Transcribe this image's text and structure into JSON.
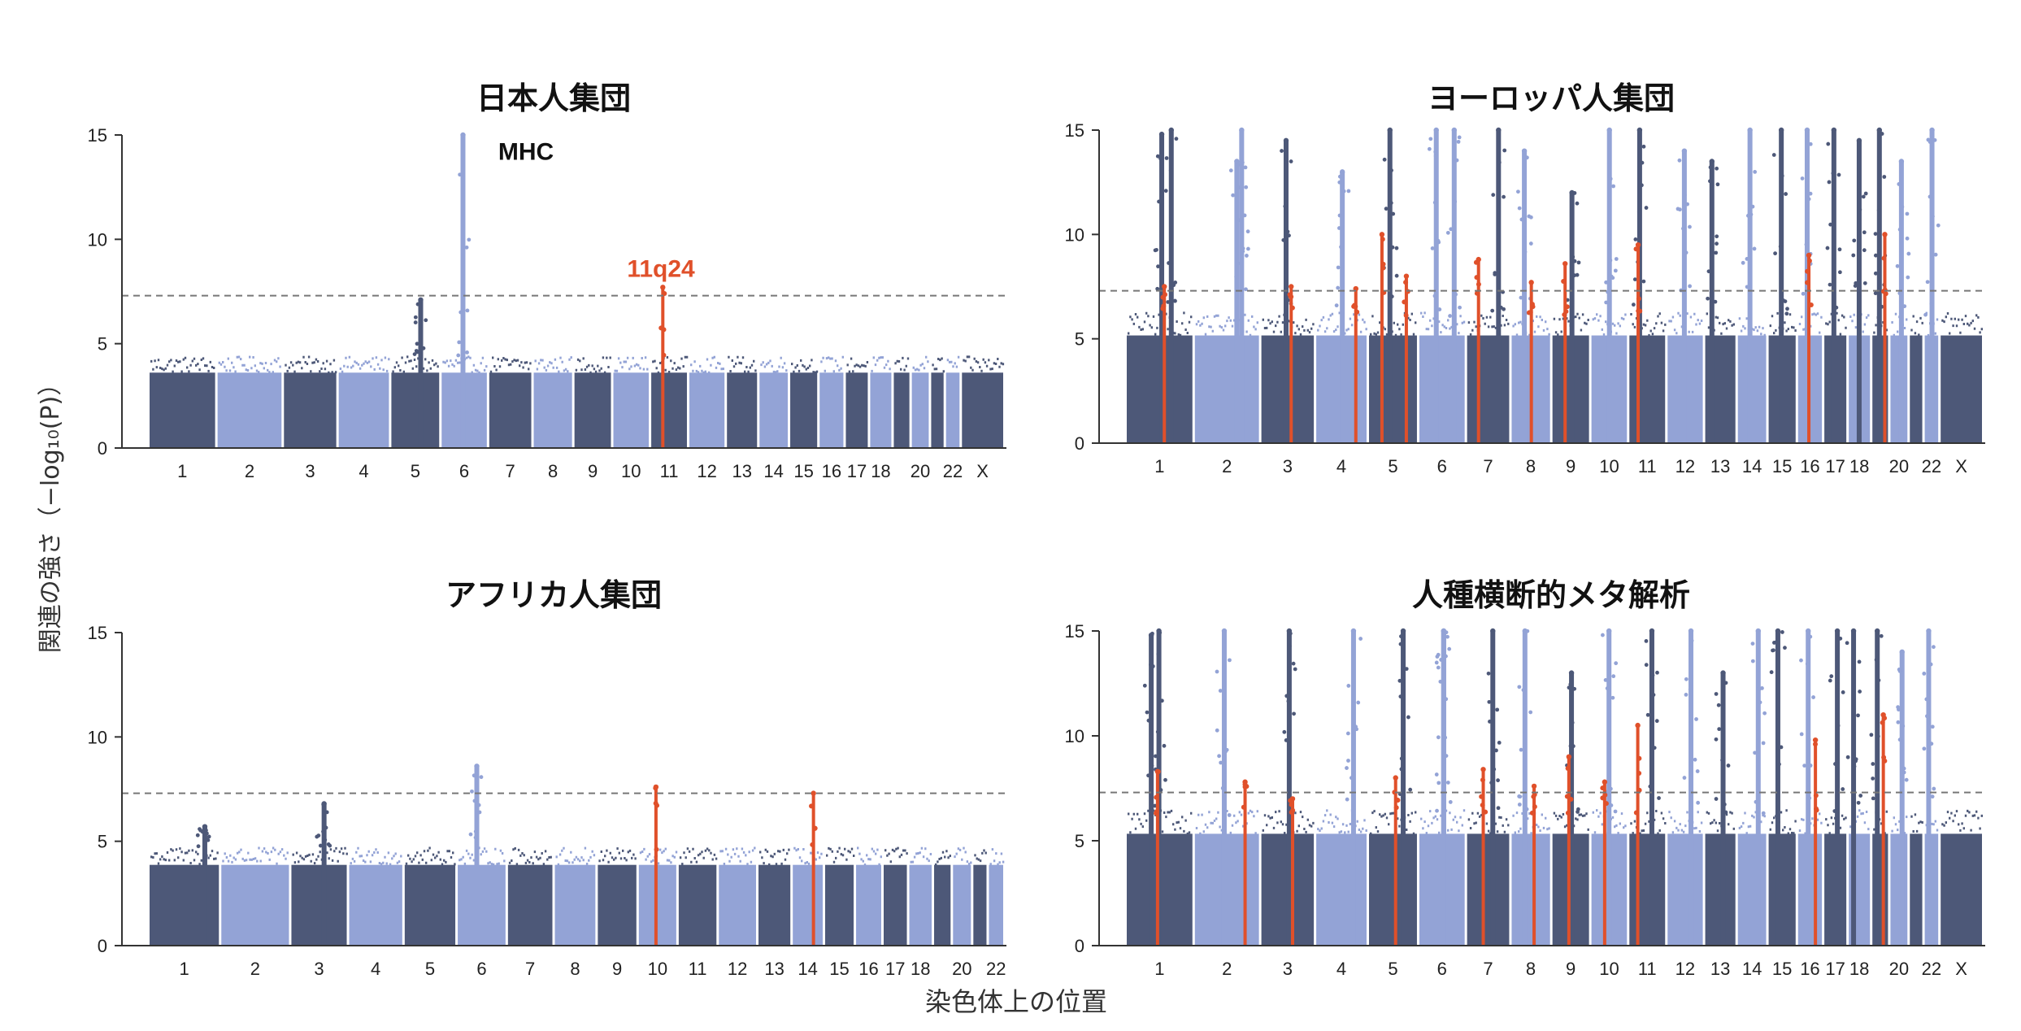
{
  "figure": {
    "y_axis_label": "関連の強さ（−log₁₀(P)）",
    "x_axis_label": "染色体上の位置"
  },
  "colors": {
    "dark": "#4d5878",
    "light": "#93a3d6",
    "highlight": "#e0502a",
    "threshold": "#777777"
  },
  "chart_data": [
    {
      "type": "scatter",
      "title": "日本人集団",
      "ylim": [
        0,
        15
      ],
      "yticks": [
        0,
        5,
        10,
        15
      ],
      "threshold": 7.3,
      "chromosomes": [
        "1",
        "2",
        "3",
        "4",
        "5",
        "6",
        "7",
        "8",
        "9",
        "10",
        "11",
        "12",
        "13",
        "14",
        "15",
        "16",
        "17",
        "18",
        "19",
        "20",
        "21",
        "22",
        "X"
      ],
      "tick_labels": [
        "1",
        "2",
        "3",
        "4",
        "5",
        "6",
        "7",
        "8",
        "9",
        "10",
        "11",
        "12",
        "13",
        "14",
        "15",
        "16",
        "17",
        "18",
        "",
        "20",
        "",
        "22",
        "X"
      ],
      "background_max": 4.2,
      "peaks": [
        {
          "chrom": "6",
          "y": 15,
          "color": "light"
        },
        {
          "chrom": "5",
          "y": 7.1,
          "color": "dark"
        },
        {
          "chrom": "11",
          "y": 7.7,
          "color": "highlight"
        }
      ],
      "annotations": [
        {
          "text": "MHC",
          "chrom": "6",
          "y": 14.2,
          "style": "black"
        },
        {
          "text": "11q24",
          "chrom": "11",
          "y": 8.6,
          "style": "red"
        }
      ]
    },
    {
      "type": "scatter",
      "title": "ヨーロッパ人集団",
      "ylim": [
        0,
        15
      ],
      "yticks": [
        0,
        5,
        10,
        15
      ],
      "threshold": 7.3,
      "chromosomes": [
        "1",
        "2",
        "3",
        "4",
        "5",
        "6",
        "7",
        "8",
        "9",
        "10",
        "11",
        "12",
        "13",
        "14",
        "15",
        "16",
        "17",
        "18",
        "19",
        "20",
        "21",
        "22",
        "X"
      ],
      "tick_labels": [
        "1",
        "2",
        "3",
        "4",
        "5",
        "6",
        "7",
        "8",
        "9",
        "10",
        "11",
        "12",
        "13",
        "14",
        "15",
        "16",
        "17",
        "18",
        "",
        "20",
        "",
        "22",
        "X"
      ],
      "background_max": 6.0,
      "peaks": [
        {
          "chrom": "1",
          "y": 15,
          "color": "dark"
        },
        {
          "chrom": "1",
          "y": 14.8,
          "color": "dark"
        },
        {
          "chrom": "1",
          "y": 7.5,
          "color": "highlight"
        },
        {
          "chrom": "2",
          "y": 13.5,
          "color": "light"
        },
        {
          "chrom": "2",
          "y": 15,
          "color": "light"
        },
        {
          "chrom": "3",
          "y": 14.5,
          "color": "dark"
        },
        {
          "chrom": "3",
          "y": 7.5,
          "color": "highlight"
        },
        {
          "chrom": "4",
          "y": 13.0,
          "color": "light"
        },
        {
          "chrom": "4",
          "y": 7.4,
          "color": "highlight"
        },
        {
          "chrom": "5",
          "y": 15,
          "color": "dark"
        },
        {
          "chrom": "5",
          "y": 10.0,
          "color": "highlight"
        },
        {
          "chrom": "5",
          "y": 8.0,
          "color": "highlight"
        },
        {
          "chrom": "6",
          "y": 15,
          "color": "light"
        },
        {
          "chrom": "6",
          "y": 15,
          "color": "light"
        },
        {
          "chrom": "7",
          "y": 15,
          "color": "dark"
        },
        {
          "chrom": "7",
          "y": 8.8,
          "color": "highlight"
        },
        {
          "chrom": "8",
          "y": 14.0,
          "color": "light"
        },
        {
          "chrom": "8",
          "y": 7.7,
          "color": "highlight"
        },
        {
          "chrom": "9",
          "y": 12.0,
          "color": "dark"
        },
        {
          "chrom": "9",
          "y": 8.6,
          "color": "highlight"
        },
        {
          "chrom": "10",
          "y": 15,
          "color": "light"
        },
        {
          "chrom": "11",
          "y": 15,
          "color": "dark"
        },
        {
          "chrom": "11",
          "y": 9.5,
          "color": "highlight"
        },
        {
          "chrom": "12",
          "y": 14.0,
          "color": "light"
        },
        {
          "chrom": "13",
          "y": 13.5,
          "color": "dark"
        },
        {
          "chrom": "14",
          "y": 15,
          "color": "light"
        },
        {
          "chrom": "15",
          "y": 15,
          "color": "dark"
        },
        {
          "chrom": "16",
          "y": 15,
          "color": "light"
        },
        {
          "chrom": "16",
          "y": 9.0,
          "color": "highlight"
        },
        {
          "chrom": "17",
          "y": 15,
          "color": "dark"
        },
        {
          "chrom": "18",
          "y": 14.5,
          "color": "dark"
        },
        {
          "chrom": "19",
          "y": 15,
          "color": "dark"
        },
        {
          "chrom": "19",
          "y": 10.0,
          "color": "highlight"
        },
        {
          "chrom": "20",
          "y": 13.5,
          "color": "light"
        },
        {
          "chrom": "22",
          "y": 15,
          "color": "light"
        }
      ],
      "annotations": []
    },
    {
      "type": "scatter",
      "title": "アフリカ人集団",
      "ylim": [
        0,
        15
      ],
      "yticks": [
        0,
        5,
        10,
        15
      ],
      "threshold": 7.3,
      "chromosomes": [
        "1",
        "2",
        "3",
        "4",
        "5",
        "6",
        "7",
        "8",
        "9",
        "10",
        "11",
        "12",
        "13",
        "14",
        "15",
        "16",
        "17",
        "18",
        "19",
        "20",
        "21",
        "22"
      ],
      "tick_labels": [
        "1",
        "2",
        "3",
        "4",
        "5",
        "6",
        "7",
        "8",
        "9",
        "10",
        "11",
        "12",
        "13",
        "14",
        "15",
        "16",
        "17",
        "18",
        "",
        "20",
        "",
        "22"
      ],
      "background_max": 4.5,
      "peaks": [
        {
          "chrom": "6",
          "y": 8.6,
          "color": "light"
        },
        {
          "chrom": "10",
          "y": 7.6,
          "color": "highlight"
        },
        {
          "chrom": "14",
          "y": 7.3,
          "color": "highlight"
        },
        {
          "chrom": "3",
          "y": 6.8,
          "color": "dark"
        },
        {
          "chrom": "1",
          "y": 5.7,
          "color": "dark"
        }
      ],
      "annotations": []
    },
    {
      "type": "scatter",
      "title": "人種横断的メタ解析",
      "ylim": [
        0,
        15
      ],
      "yticks": [
        0,
        5,
        10,
        15
      ],
      "threshold": 7.3,
      "chromosomes": [
        "1",
        "2",
        "3",
        "4",
        "5",
        "6",
        "7",
        "8",
        "9",
        "10",
        "11",
        "12",
        "13",
        "14",
        "15",
        "16",
        "17",
        "18",
        "19",
        "20",
        "21",
        "22",
        "X"
      ],
      "tick_labels": [
        "1",
        "2",
        "3",
        "4",
        "5",
        "6",
        "7",
        "8",
        "9",
        "10",
        "11",
        "12",
        "13",
        "14",
        "15",
        "16",
        "17",
        "18",
        "",
        "20",
        "",
        "22",
        "X"
      ],
      "background_max": 6.2,
      "peaks": [
        {
          "chrom": "1",
          "y": 15,
          "color": "dark"
        },
        {
          "chrom": "1",
          "y": 14.8,
          "color": "dark"
        },
        {
          "chrom": "1",
          "y": 8.3,
          "color": "highlight"
        },
        {
          "chrom": "2",
          "y": 15,
          "color": "light"
        },
        {
          "chrom": "2",
          "y": 7.8,
          "color": "highlight"
        },
        {
          "chrom": "3",
          "y": 15,
          "color": "dark"
        },
        {
          "chrom": "3",
          "y": 7.0,
          "color": "highlight"
        },
        {
          "chrom": "4",
          "y": 15,
          "color": "light"
        },
        {
          "chrom": "5",
          "y": 15,
          "color": "dark"
        },
        {
          "chrom": "5",
          "y": 8.0,
          "color": "highlight"
        },
        {
          "chrom": "6",
          "y": 15,
          "color": "light"
        },
        {
          "chrom": "6",
          "y": 15,
          "color": "light"
        },
        {
          "chrom": "7",
          "y": 15,
          "color": "dark"
        },
        {
          "chrom": "7",
          "y": 8.4,
          "color": "highlight"
        },
        {
          "chrom": "8",
          "y": 15,
          "color": "light"
        },
        {
          "chrom": "8",
          "y": 7.6,
          "color": "highlight"
        },
        {
          "chrom": "9",
          "y": 13.0,
          "color": "dark"
        },
        {
          "chrom": "9",
          "y": 9.0,
          "color": "highlight"
        },
        {
          "chrom": "10",
          "y": 15,
          "color": "light"
        },
        {
          "chrom": "10",
          "y": 7.8,
          "color": "highlight"
        },
        {
          "chrom": "11",
          "y": 15,
          "color": "dark"
        },
        {
          "chrom": "11",
          "y": 10.5,
          "color": "highlight"
        },
        {
          "chrom": "12",
          "y": 15,
          "color": "light"
        },
        {
          "chrom": "13",
          "y": 13.0,
          "color": "dark"
        },
        {
          "chrom": "14",
          "y": 15,
          "color": "light"
        },
        {
          "chrom": "15",
          "y": 15,
          "color": "dark"
        },
        {
          "chrom": "16",
          "y": 15,
          "color": "light"
        },
        {
          "chrom": "16",
          "y": 9.8,
          "color": "highlight"
        },
        {
          "chrom": "17",
          "y": 15,
          "color": "dark"
        },
        {
          "chrom": "18",
          "y": 15,
          "color": "dark"
        },
        {
          "chrom": "19",
          "y": 15,
          "color": "dark"
        },
        {
          "chrom": "19",
          "y": 11.0,
          "color": "highlight"
        },
        {
          "chrom": "20",
          "y": 14.0,
          "color": "light"
        },
        {
          "chrom": "22",
          "y": 15,
          "color": "light"
        }
      ],
      "annotations": []
    }
  ]
}
